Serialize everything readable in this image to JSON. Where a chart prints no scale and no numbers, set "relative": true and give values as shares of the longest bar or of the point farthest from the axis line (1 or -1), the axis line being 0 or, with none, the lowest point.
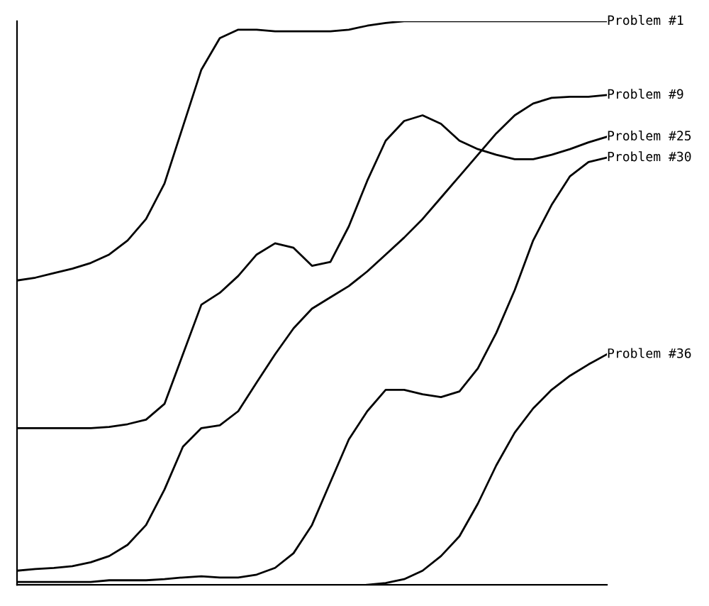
{
  "chart_data": {
    "type": "line",
    "relative": true,
    "legend": false,
    "marker": "none",
    "line_style": "solid",
    "categories": [
      null,
      null,
      null,
      null,
      null,
      null,
      null,
      null,
      null,
      null,
      null,
      null,
      null,
      null,
      null,
      null,
      null,
      null,
      null,
      null,
      null,
      null,
      null,
      null,
      null,
      null,
      null,
      null,
      null,
      null,
      null,
      null,
      null
    ],
    "series": [
      {
        "name": "Problem #1",
        "color": "#000000",
        "values": [
          0.54,
          0.545,
          0.553,
          0.561,
          0.571,
          0.586,
          0.611,
          0.649,
          0.712,
          0.813,
          0.914,
          0.97,
          0.985,
          0.985,
          0.982,
          0.982,
          0.982,
          0.982,
          0.985,
          0.992,
          0.997,
          1,
          1,
          1,
          1,
          1,
          1,
          1,
          1,
          1,
          1,
          1,
          1
        ]
      },
      {
        "name": "Problem #9",
        "color": "#000000",
        "values": [
          0.025,
          0.028,
          0.03,
          0.033,
          0.04,
          0.051,
          0.071,
          0.106,
          0.169,
          0.245,
          0.278,
          0.283,
          0.308,
          0.359,
          0.409,
          0.455,
          0.49,
          0.51,
          0.53,
          0.556,
          0.586,
          0.616,
          0.649,
          0.687,
          0.725,
          0.763,
          0.801,
          0.833,
          0.854,
          0.864,
          0.866,
          0.866,
          0.869
        ]
      },
      {
        "name": "Problem #25",
        "color": "#000000",
        "values": [
          0.278,
          0.278,
          0.278,
          0.278,
          0.278,
          0.28,
          0.285,
          0.293,
          0.321,
          0.409,
          0.497,
          0.518,
          0.548,
          0.586,
          0.606,
          0.598,
          0.566,
          0.573,
          0.636,
          0.717,
          0.788,
          0.823,
          0.833,
          0.818,
          0.788,
          0.773,
          0.763,
          0.755,
          0.755,
          0.763,
          0.773,
          0.785,
          0.795
        ]
      },
      {
        "name": "Problem #30",
        "color": "#000000",
        "values": [
          0.005,
          0.005,
          0.005,
          0.005,
          0.005,
          0.008,
          0.008,
          0.008,
          0.01,
          0.013,
          0.015,
          0.013,
          0.013,
          0.018,
          0.03,
          0.056,
          0.106,
          0.182,
          0.258,
          0.308,
          0.346,
          0.346,
          0.338,
          0.333,
          0.343,
          0.384,
          0.447,
          0.523,
          0.611,
          0.674,
          0.725,
          0.75,
          0.758
        ]
      },
      {
        "name": "Problem #36",
        "color": "#000000",
        "values": [
          null,
          null,
          null,
          null,
          null,
          null,
          null,
          null,
          null,
          null,
          null,
          null,
          null,
          null,
          null,
          null,
          null,
          null,
          null,
          0,
          0.003,
          0.01,
          0.025,
          0.051,
          0.086,
          0.144,
          0.212,
          0.27,
          0.313,
          0.346,
          0.371,
          0.391,
          0.409
        ]
      }
    ]
  }
}
